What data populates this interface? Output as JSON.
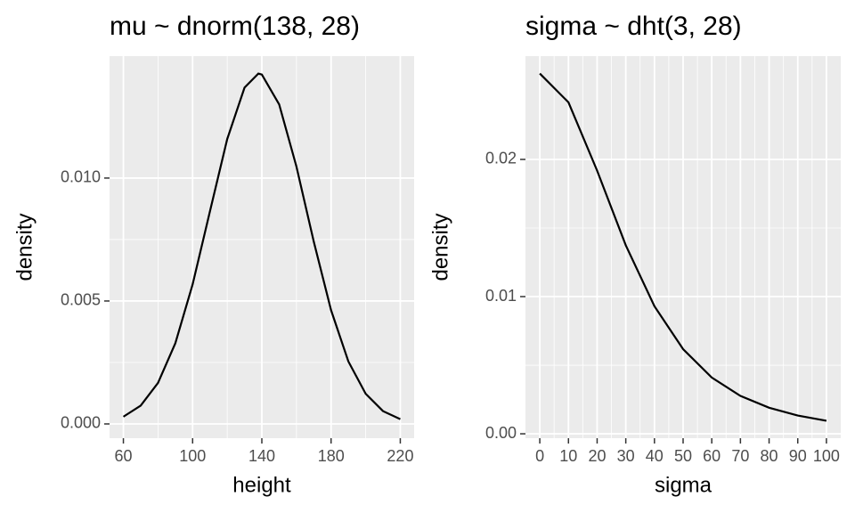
{
  "chart_data": [
    {
      "type": "line",
      "title": "mu ~ dnorm(138, 28)",
      "x_label": "height",
      "y_label": "density",
      "x": [
        60,
        70,
        80,
        90,
        100,
        110,
        120,
        130,
        138,
        140,
        150,
        160,
        170,
        180,
        190,
        200,
        210,
        220
      ],
      "values": [
        0.000294,
        0.000746,
        0.001667,
        0.003278,
        0.005674,
        0.008642,
        0.011588,
        0.013678,
        0.014248,
        0.014212,
        0.012999,
        0.010464,
        0.007415,
        0.004626,
        0.00254,
        0.001227,
        0.000522,
        0.000196
      ],
      "color": "#000000",
      "xlim": [
        52,
        228
      ],
      "xticks": [
        60,
        100,
        140,
        180,
        220
      ],
      "ylim": [
        -0.00058,
        0.01496
      ],
      "yticks": [
        {
          "value": 0,
          "label": "0.000"
        },
        0.005,
        {
          "value": 0.01,
          "label": "0.010"
        }
      ],
      "grid": true
    },
    {
      "type": "line",
      "title": "sigma ~ dht(3, 28)",
      "x_label": "sigma",
      "y_label": "density",
      "x": [
        0,
        10,
        20,
        30,
        40,
        50,
        60,
        70,
        80,
        90,
        100
      ],
      "values": [
        0.02626,
        0.02416,
        0.01918,
        0.01374,
        0.0093,
        0.00617,
        0.0041,
        0.00276,
        0.0019,
        0.00133,
        0.00095
      ],
      "color": "#000000",
      "xlim": [
        -5,
        105
      ],
      "xticks": [
        0,
        10,
        20,
        30,
        40,
        50,
        60,
        70,
        80,
        90,
        100
      ],
      "ylim": [
        -0.00032,
        0.02753
      ],
      "yticks": [
        {
          "value": 0,
          "label": "0.00"
        },
        0.01,
        0.02
      ],
      "grid": true
    }
  ]
}
